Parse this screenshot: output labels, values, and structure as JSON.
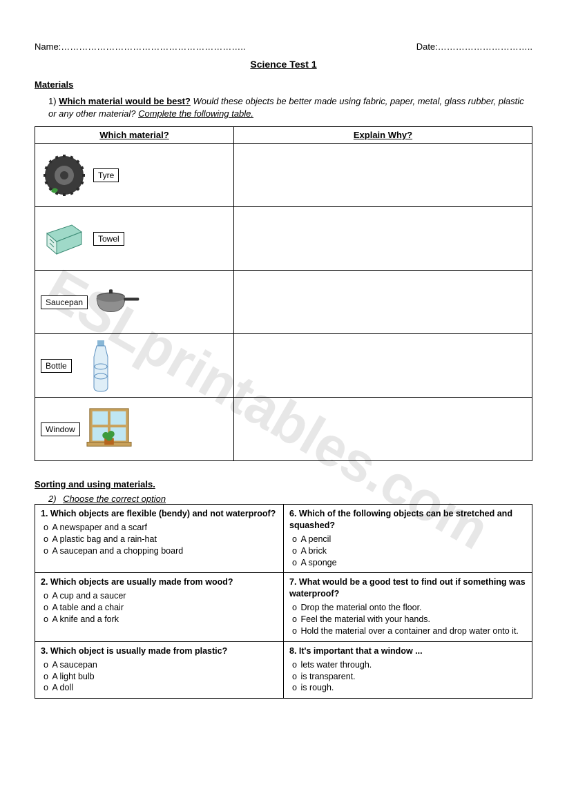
{
  "watermark": "ESLprintables.com",
  "header": {
    "name_label": "Name:……………………………………………………..",
    "date_label": "Date:………………………….."
  },
  "title": "Science Test 1",
  "section1_head": "Materials",
  "q1": {
    "num": "1)",
    "lead": "Which material would be best?",
    "body": " Would these objects be better made using fabric, paper, metal, glass rubber, plastic or any other material? ",
    "tail": "Complete the following table."
  },
  "table1": {
    "col1": "Which material?",
    "col2": "Explain Why?",
    "rows": [
      {
        "label": "Tyre",
        "icon": "tyre"
      },
      {
        "label": "Towel",
        "icon": "towel"
      },
      {
        "label": "Saucepan",
        "icon": "saucepan"
      },
      {
        "label": "Bottle",
        "icon": "bottle"
      },
      {
        "label": "Window",
        "icon": "window"
      }
    ]
  },
  "section2_head": "Sorting and using materials.",
  "q2": {
    "num": "2)",
    "inst": "Choose the correct option"
  },
  "mcq": [
    {
      "left": {
        "title": "1. Which objects are flexible (bendy) and not waterproof?",
        "opts": [
          "A newspaper and a scarf",
          "A plastic bag and a rain-hat",
          "A saucepan and a chopping board"
        ]
      },
      "right": {
        "title": "6. Which of the following objects can be stretched and squashed?",
        "opts": [
          "A pencil",
          "A brick",
          "A sponge"
        ]
      }
    },
    {
      "left": {
        "title": "2. Which objects are usually made from wood?",
        "opts": [
          "A cup and a saucer",
          "A table and a chair",
          "A knife and a fork"
        ]
      },
      "right": {
        "title": "7. What would be a good test to find out if something was waterproof?",
        "opts": [
          "Drop the material onto the floor.",
          "Feel the material with your hands.",
          "Hold the material over a container and drop water onto it."
        ]
      }
    },
    {
      "left": {
        "title": "3. Which object is usually made from plastic?",
        "opts": [
          "A saucepan",
          "A light bulb",
          "A doll"
        ]
      },
      "right": {
        "title": "8. It's important that a window ...",
        "opts": [
          "lets water through.",
          "is transparent.",
          "is rough."
        ]
      }
    }
  ],
  "colors": {
    "border": "#000000",
    "watermark": "#d4d4d4",
    "tyre": "#3a3a3a",
    "towel1": "#9fd9c8",
    "towel2": "#d9f0e8",
    "pan_body": "#8f8f8f",
    "pan_lid": "#595959",
    "bottle": "#dfeef7",
    "bottle_outline": "#5a8fbf",
    "window_frame": "#c9a15a",
    "window_pane": "#bfe6f2",
    "plant": "#3c9a3c",
    "pot": "#b5651d"
  }
}
